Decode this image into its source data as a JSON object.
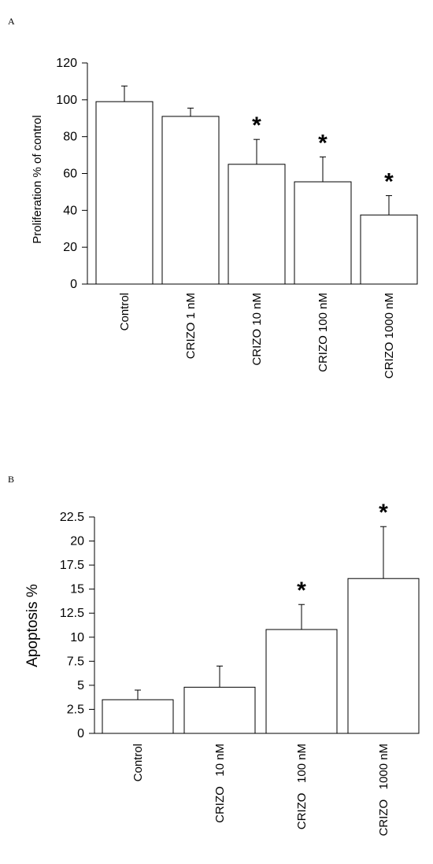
{
  "chart_data": [
    {
      "type": "bar",
      "panel_label": "A",
      "title": "",
      "xlabel": "",
      "ylabel": "Proliferation % of control",
      "ylim": [
        0,
        120
      ],
      "yticks": [
        "0",
        "20",
        "40",
        "60",
        "80",
        "100",
        "120"
      ],
      "ytick_values": [
        0,
        20,
        40,
        60,
        80,
        100,
        120
      ],
      "categories": [
        "Control",
        "CRIZO 1 nM",
        "CRIZO 10 nM",
        "CRIZO 100 nM",
        "CRIZO 1000 nM"
      ],
      "values": [
        99,
        91,
        65,
        55.5,
        37.5
      ],
      "error_upper": [
        107.5,
        95.5,
        78.5,
        69,
        48
      ],
      "significance": [
        "",
        "",
        "*",
        "*",
        "*"
      ],
      "bar_color": "#ffffff",
      "edge_color": "#000000",
      "grid": false
    },
    {
      "type": "bar",
      "panel_label": "B",
      "title": "",
      "xlabel": "",
      "ylabel": "Apoptosis %",
      "ylim": [
        0,
        22.5
      ],
      "yticks": [
        "0",
        "2.5",
        "5",
        "7.5",
        "10",
        "12.5",
        "15",
        "17.5",
        "20",
        "22.5"
      ],
      "ytick_values": [
        0,
        2.5,
        5,
        7.5,
        10,
        12.5,
        15,
        17.5,
        20,
        22.5
      ],
      "categories": [
        "Control",
        "CRIZO   10 nM",
        "CRIZO   100 nM",
        "CRIZO   1000 nM"
      ],
      "values": [
        3.5,
        4.8,
        10.8,
        16.1
      ],
      "error_upper": [
        4.5,
        7.0,
        13.4,
        21.5
      ],
      "significance": [
        "",
        "",
        "*",
        "*"
      ],
      "bar_color": "#ffffff",
      "edge_color": "#000000",
      "grid": false
    }
  ]
}
